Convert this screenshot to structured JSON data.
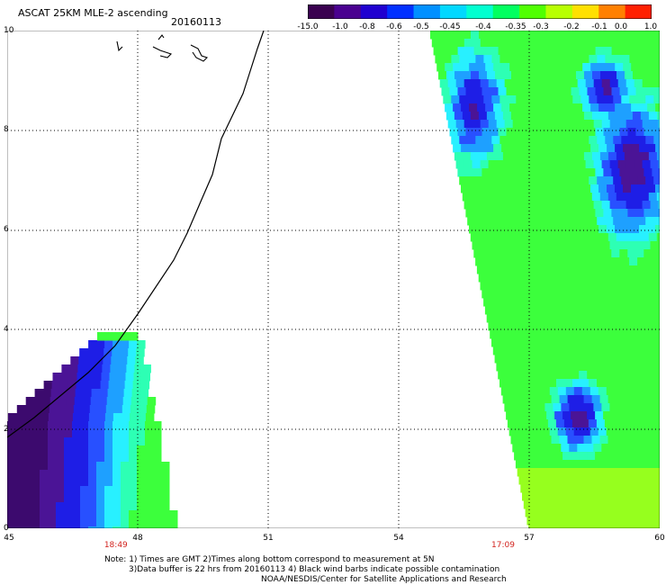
{
  "header": {
    "title": "ASCAT 25KM MLE-2 ascending",
    "date": "20160113"
  },
  "colorbar": {
    "labels": [
      "-15.0",
      "-1.0",
      "-0.8",
      "-0.6",
      "-0.5",
      "-0.45",
      "-0.4",
      "-0.35",
      "-0.3",
      "-0.2",
      "-0.1",
      "0.0",
      "1.0"
    ],
    "colors": [
      "#3a0050",
      "#4a0090",
      "#2000d0",
      "#0030ff",
      "#0090ff",
      "#00d8ff",
      "#00ffd0",
      "#00ff60",
      "#50ff00",
      "#b8ff00",
      "#ffe000",
      "#ff8000",
      "#ff2000"
    ]
  },
  "map": {
    "x_ticks": [
      "45",
      "48",
      "51",
      "54",
      "57",
      "60"
    ],
    "y_ticks": [
      "0",
      "2",
      "4",
      "6",
      "8",
      "10"
    ],
    "time_labels": [
      {
        "text": "18:49",
        "lon": 47.5
      },
      {
        "text": "17:09",
        "lon": 56.4
      }
    ],
    "swath_colors": {
      "deep": "#3c0a6e",
      "purple": "#4b1496",
      "blue": "#1e1ee6",
      "mid_blue": "#2850ff",
      "sky": "#1ea0ff",
      "cyan": "#28f0ff",
      "aqua": "#2dffb4",
      "green": "#3cff3c",
      "lime": "#96ff1e"
    }
  },
  "notes": {
    "line1": "Note: 1) Times are GMT 2)Times along bottom correspond to measurement at 5N",
    "line2": "3)Data buffer is 22 hrs from 20160113 4) Black wind barbs indicate possible contamination",
    "line3": "NOAA/NESDIS/Center for Satellite Applications and Research"
  }
}
